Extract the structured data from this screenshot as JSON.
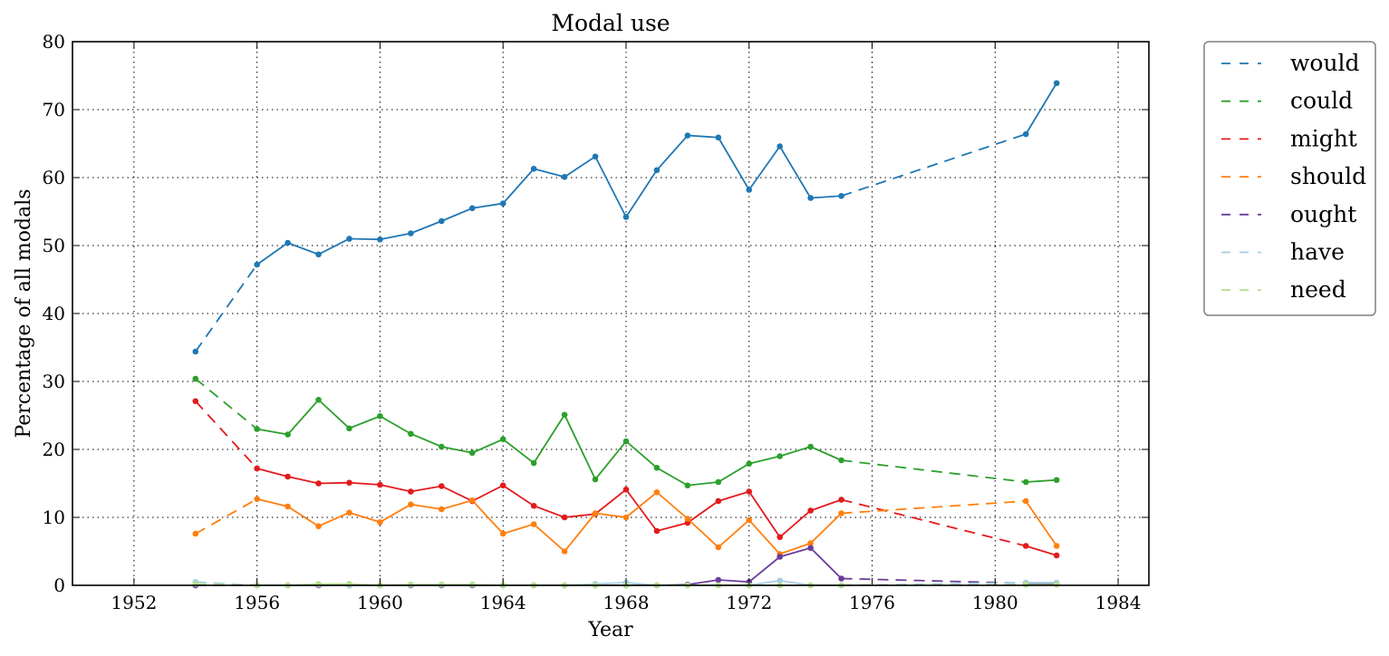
{
  "chart_data": {
    "type": "line",
    "title": "Modal use",
    "xlabel": "Year",
    "ylabel": "Percentage of all modals",
    "xlim": [
      1950,
      1985
    ],
    "ylim": [
      0,
      80
    ],
    "x_ticks": [
      "1952",
      "1956",
      "1960",
      "1964",
      "1968",
      "1972",
      "1976",
      "1980",
      "1984"
    ],
    "y_ticks": [
      "0",
      "10",
      "20",
      "30",
      "40",
      "50",
      "60",
      "70",
      "80"
    ],
    "grid": true,
    "legend_position": "outside-right-top",
    "observed_years": [
      1954,
      1956,
      1957,
      1958,
      1959,
      1960,
      1961,
      1962,
      1963,
      1964,
      1965,
      1966,
      1967,
      1968,
      1969,
      1970,
      1971,
      1972,
      1973,
      1974,
      1975,
      1981,
      1982
    ],
    "series": [
      {
        "name": "would",
        "color": "#1f77b4",
        "values": [
          34.4,
          47.2,
          50.4,
          48.7,
          51.0,
          50.9,
          51.8,
          53.6,
          55.5,
          56.2,
          61.3,
          60.1,
          63.1,
          54.2,
          61.1,
          66.2,
          65.9,
          58.2,
          64.6,
          57.0,
          57.3,
          66.4,
          73.9
        ]
      },
      {
        "name": "could",
        "color": "#2ca02c",
        "values": [
          30.4,
          23.0,
          22.2,
          27.3,
          23.1,
          24.9,
          22.3,
          20.4,
          19.5,
          21.5,
          18.0,
          25.1,
          15.6,
          21.2,
          17.3,
          14.7,
          15.2,
          17.9,
          19.0,
          20.4,
          18.4,
          15.2,
          15.5
        ]
      },
      {
        "name": "might",
        "color": "#e31a1c",
        "values": [
          27.1,
          17.2,
          16.0,
          15.0,
          15.1,
          14.8,
          13.8,
          14.6,
          12.4,
          14.7,
          11.7,
          10.0,
          10.5,
          14.1,
          8.0,
          9.2,
          12.4,
          13.8,
          7.1,
          11.0,
          12.6,
          5.8,
          4.4
        ]
      },
      {
        "name": "should",
        "color": "#ff7f0e",
        "values": [
          7.6,
          12.7,
          11.6,
          8.7,
          10.7,
          9.3,
          11.9,
          11.2,
          12.5,
          7.6,
          9.0,
          5.0,
          10.6,
          10.0,
          13.7,
          9.8,
          5.6,
          9.6,
          4.6,
          6.2,
          10.6,
          12.4,
          5.8
        ]
      },
      {
        "name": "ought",
        "color": "#6a3d9a",
        "values": [
          0.0,
          0.0,
          0.0,
          0.0,
          0.0,
          0.0,
          0.0,
          0.0,
          0.0,
          0.0,
          0.0,
          0.0,
          0.0,
          0.0,
          0.0,
          0.1,
          0.8,
          0.5,
          4.2,
          5.5,
          1.0,
          0.3,
          0.3
        ]
      },
      {
        "name": "have",
        "color": "#a6cee3",
        "values": [
          0.5,
          0.0,
          0.0,
          0.1,
          0.0,
          0.0,
          0.1,
          0.1,
          0.1,
          0.0,
          0.0,
          0.0,
          0.2,
          0.4,
          0.0,
          0.0,
          0.0,
          0.0,
          0.7,
          0.0,
          0.0,
          0.4,
          0.4
        ]
      },
      {
        "name": "need",
        "color": "#b2df8a",
        "values": [
          0.2,
          0.0,
          0.0,
          0.2,
          0.2,
          0.0,
          0.1,
          0.1,
          0.1,
          0.0,
          0.0,
          0.0,
          0.0,
          0.0,
          0.0,
          0.0,
          0.0,
          0.0,
          0.0,
          0.0,
          0.0,
          0.1,
          0.1
        ]
      }
    ]
  }
}
